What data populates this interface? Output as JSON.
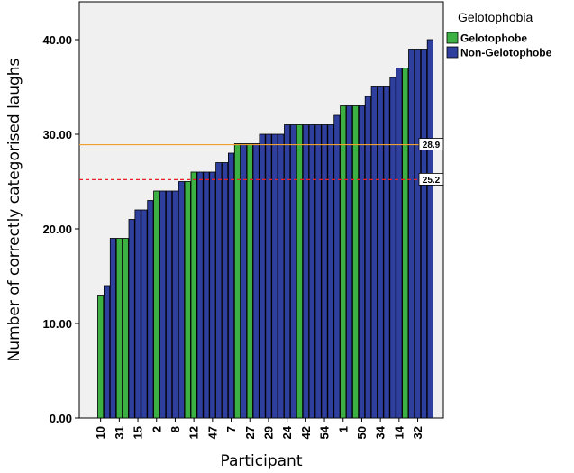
{
  "chart_data": {
    "type": "bar",
    "xlabel": "Participant",
    "ylabel": "Number of correctly categorised laughs",
    "ylim": [
      0,
      44
    ],
    "y_ticks": [
      "0.00",
      "10.00",
      "20.00",
      "30.00",
      "40.00"
    ],
    "y_tick_values": [
      0,
      10,
      20,
      30,
      40
    ],
    "grid": false,
    "legend": {
      "title": "Gelotophobia",
      "placement": "right",
      "entries": [
        {
          "label": "Gelotophobe",
          "color": "#3cb043"
        },
        {
          "label": "Non-Gelotophobe",
          "color": "#2e3f9e"
        }
      ]
    },
    "x_tick_labels": [
      "10",
      "31",
      "15",
      "2",
      "8",
      "12",
      "47",
      "7",
      "27",
      "29",
      "24",
      "42",
      "54",
      "1",
      "50",
      "34",
      "14",
      "32"
    ],
    "bars": [
      {
        "value": 13,
        "group": "Gelotophobe"
      },
      {
        "value": 14,
        "group": "Non-Gelotophobe"
      },
      {
        "value": 19,
        "group": "Non-Gelotophobe"
      },
      {
        "value": 19,
        "group": "Gelotophobe"
      },
      {
        "value": 19,
        "group": "Gelotophobe"
      },
      {
        "value": 21,
        "group": "Non-Gelotophobe"
      },
      {
        "value": 22,
        "group": "Non-Gelotophobe"
      },
      {
        "value": 22,
        "group": "Non-Gelotophobe"
      },
      {
        "value": 23,
        "group": "Non-Gelotophobe"
      },
      {
        "value": 24,
        "group": "Gelotophobe"
      },
      {
        "value": 24,
        "group": "Non-Gelotophobe"
      },
      {
        "value": 24,
        "group": "Non-Gelotophobe"
      },
      {
        "value": 24,
        "group": "Non-Gelotophobe"
      },
      {
        "value": 25,
        "group": "Non-Gelotophobe"
      },
      {
        "value": 25,
        "group": "Gelotophobe"
      },
      {
        "value": 26,
        "group": "Gelotophobe"
      },
      {
        "value": 26,
        "group": "Non-Gelotophobe"
      },
      {
        "value": 26,
        "group": "Non-Gelotophobe"
      },
      {
        "value": 26,
        "group": "Non-Gelotophobe"
      },
      {
        "value": 27,
        "group": "Non-Gelotophobe"
      },
      {
        "value": 27,
        "group": "Non-Gelotophobe"
      },
      {
        "value": 28,
        "group": "Non-Gelotophobe"
      },
      {
        "value": 29,
        "group": "Gelotophobe"
      },
      {
        "value": 29,
        "group": "Non-Gelotophobe"
      },
      {
        "value": 29,
        "group": "Gelotophobe"
      },
      {
        "value": 29,
        "group": "Non-Gelotophobe"
      },
      {
        "value": 30,
        "group": "Non-Gelotophobe"
      },
      {
        "value": 30,
        "group": "Non-Gelotophobe"
      },
      {
        "value": 30,
        "group": "Non-Gelotophobe"
      },
      {
        "value": 30,
        "group": "Non-Gelotophobe"
      },
      {
        "value": 31,
        "group": "Non-Gelotophobe"
      },
      {
        "value": 31,
        "group": "Non-Gelotophobe"
      },
      {
        "value": 31,
        "group": "Gelotophobe"
      },
      {
        "value": 31,
        "group": "Non-Gelotophobe"
      },
      {
        "value": 31,
        "group": "Non-Gelotophobe"
      },
      {
        "value": 31,
        "group": "Non-Gelotophobe"
      },
      {
        "value": 31,
        "group": "Non-Gelotophobe"
      },
      {
        "value": 31,
        "group": "Non-Gelotophobe"
      },
      {
        "value": 32,
        "group": "Non-Gelotophobe"
      },
      {
        "value": 33,
        "group": "Gelotophobe"
      },
      {
        "value": 33,
        "group": "Non-Gelotophobe"
      },
      {
        "value": 33,
        "group": "Gelotophobe"
      },
      {
        "value": 33,
        "group": "Non-Gelotophobe"
      },
      {
        "value": 34,
        "group": "Non-Gelotophobe"
      },
      {
        "value": 35,
        "group": "Non-Gelotophobe"
      },
      {
        "value": 35,
        "group": "Non-Gelotophobe"
      },
      {
        "value": 35,
        "group": "Non-Gelotophobe"
      },
      {
        "value": 36,
        "group": "Non-Gelotophobe"
      },
      {
        "value": 37,
        "group": "Non-Gelotophobe"
      },
      {
        "value": 37,
        "group": "Gelotophobe"
      },
      {
        "value": 39,
        "group": "Non-Gelotophobe"
      },
      {
        "value": 39,
        "group": "Non-Gelotophobe"
      },
      {
        "value": 39,
        "group": "Non-Gelotophobe"
      },
      {
        "value": 40,
        "group": "Non-Gelotophobe"
      }
    ],
    "reference_lines": [
      {
        "value": 28.9,
        "label": "28.9",
        "color": "#f0a030",
        "style": "solid"
      },
      {
        "value": 25.2,
        "label": "25.2",
        "color": "#e8202a",
        "style": "dashed"
      }
    ],
    "colors": {
      "plot_background": "#f0f0f0",
      "gelotophobe": "#3cb043",
      "non_gelotophobe": "#2e3f9e"
    }
  }
}
